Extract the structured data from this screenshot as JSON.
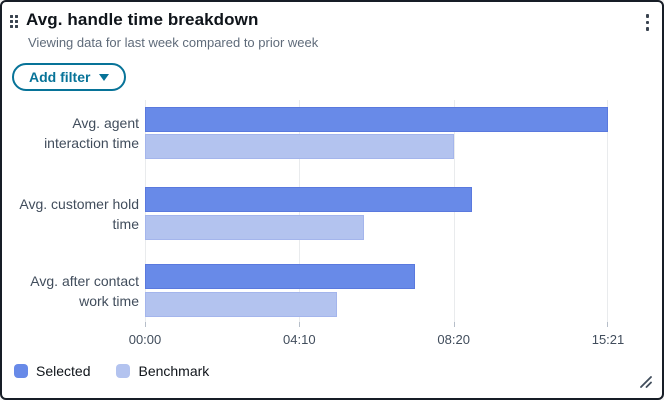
{
  "header": {
    "title": "Avg. handle time breakdown",
    "subtitle": "Viewing data for last week compared to prior week"
  },
  "toolbar": {
    "add_filter_label": "Add filter"
  },
  "icons": {
    "drag_handle": "drag-dots-grid",
    "menu": "kebab-vertical",
    "filter_caret": "triangle-down",
    "resize": "diagonal-resize"
  },
  "colors": {
    "selected": "#688ae8",
    "benchmark": "#b3c3ef",
    "accent_teal": "#077398",
    "card_border": "#171d26",
    "gridline": "#e9ebed",
    "text_primary": "#0f141a",
    "text_secondary": "#414d5c"
  },
  "chart_data": {
    "type": "bar",
    "orientation": "horizontal",
    "title": "Avg. handle time breakdown",
    "categories": [
      "Avg. agent interaction time",
      "Avg. customer hold time",
      "Avg. after contact work time"
    ],
    "category_lines": [
      [
        "Avg. agent",
        "interaction time"
      ],
      [
        "Avg. customer hold",
        "time"
      ],
      [
        "Avg. after contact",
        "work time"
      ]
    ],
    "series": [
      {
        "name": "Selected",
        "color": "#688ae8",
        "length_pct": [
          100,
          70.6,
          58.3
        ],
        "approx_times": [
          "15:21",
          "09:08",
          "07:17"
        ]
      },
      {
        "name": "Benchmark",
        "color": "#b3c3ef",
        "length_pct": [
          66.7,
          47.3,
          41.5
        ],
        "approx_times": [
          "08:20",
          "05:55",
          "05:11"
        ]
      }
    ],
    "x_ticks": [
      "00:00",
      "04:10",
      "08:20",
      "15:21"
    ],
    "x_tick_positions_pct": [
      0,
      33.33,
      66.67,
      100
    ],
    "grid": true,
    "legend_position": "bottom-left"
  },
  "legend": {
    "items": [
      {
        "label": "Selected"
      },
      {
        "label": "Benchmark"
      }
    ]
  }
}
